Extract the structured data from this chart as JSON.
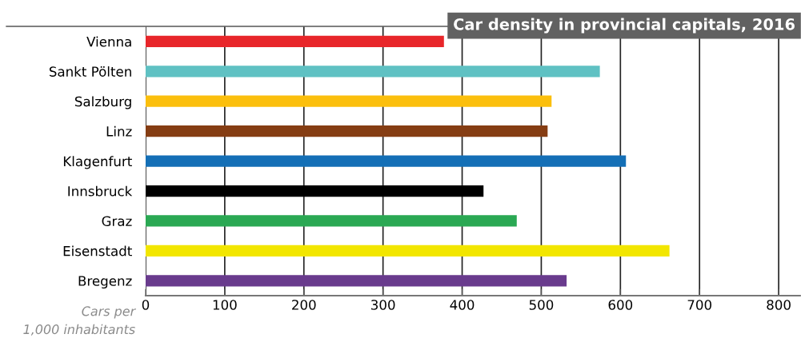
{
  "chart_data": {
    "type": "bar",
    "orientation": "horizontal",
    "title": "Car density in provincial capitals, 2016",
    "xlabel": "Cars per\n1,000 inhabitants",
    "categories": [
      "Vienna",
      "Sankt Pölten",
      "Salzburg",
      "Linz",
      "Klagenfurt",
      "Innsbruck",
      "Graz",
      "Eisenstadt",
      "Bregenz"
    ],
    "values": [
      377,
      574,
      513,
      508,
      607,
      427,
      469,
      662,
      532
    ],
    "colors": [
      "#e8262a",
      "#5fc1c3",
      "#fbbf0d",
      "#853d13",
      "#146fb6",
      "#000000",
      "#2aa853",
      "#f2e600",
      "#693b8d"
    ],
    "xlim": [
      0,
      827
    ],
    "xticks": [
      0,
      100,
      200,
      300,
      400,
      500,
      600,
      700,
      800
    ],
    "grid": "x",
    "legend": false
  }
}
